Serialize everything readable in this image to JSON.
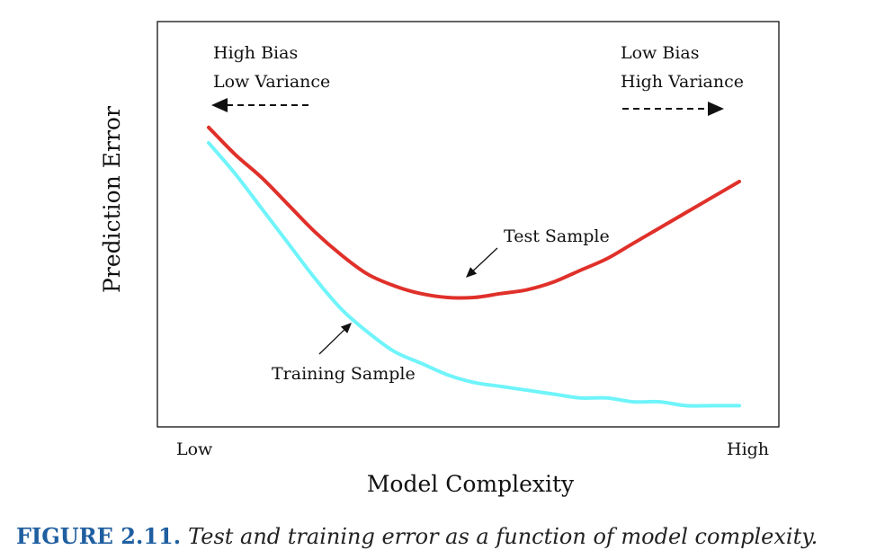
{
  "chart_data": {
    "type": "line",
    "xlabel": "Model Complexity",
    "ylabel": "Prediction Error",
    "x_tick_labels": [
      "Low",
      "High"
    ],
    "xlim": [
      0,
      1
    ],
    "ylim": [
      0,
      1
    ],
    "grid": false,
    "series": [
      {
        "name": "Test Sample",
        "color": "#e0302a",
        "x": [
          0.0,
          0.05,
          0.1,
          0.15,
          0.2,
          0.25,
          0.3,
          0.35,
          0.4,
          0.45,
          0.5,
          0.55,
          0.6,
          0.65,
          0.7,
          0.75,
          0.8,
          0.85,
          0.9,
          0.95,
          1.0
        ],
        "y": [
          0.74,
          0.67,
          0.61,
          0.54,
          0.47,
          0.41,
          0.36,
          0.33,
          0.31,
          0.3,
          0.3,
          0.31,
          0.32,
          0.34,
          0.37,
          0.4,
          0.44,
          0.48,
          0.52,
          0.56,
          0.6
        ]
      },
      {
        "name": "Training Sample",
        "color": "#6ff4fa",
        "x": [
          0.0,
          0.05,
          0.1,
          0.15,
          0.2,
          0.25,
          0.3,
          0.35,
          0.4,
          0.45,
          0.5,
          0.55,
          0.6,
          0.65,
          0.7,
          0.75,
          0.8,
          0.85,
          0.9,
          0.95,
          1.0
        ],
        "y": [
          0.7,
          0.62,
          0.53,
          0.44,
          0.35,
          0.27,
          0.21,
          0.16,
          0.13,
          0.1,
          0.08,
          0.07,
          0.06,
          0.05,
          0.04,
          0.04,
          0.03,
          0.03,
          0.02,
          0.02,
          0.02
        ]
      }
    ],
    "annotations": {
      "left_line1": "High Bias",
      "left_line2": "Low Variance",
      "right_line1": "Low Bias",
      "right_line2": "High Variance"
    }
  },
  "caption": {
    "label": "FIGURE 2.11.",
    "text": "Test and training error as a function of model complexity."
  }
}
